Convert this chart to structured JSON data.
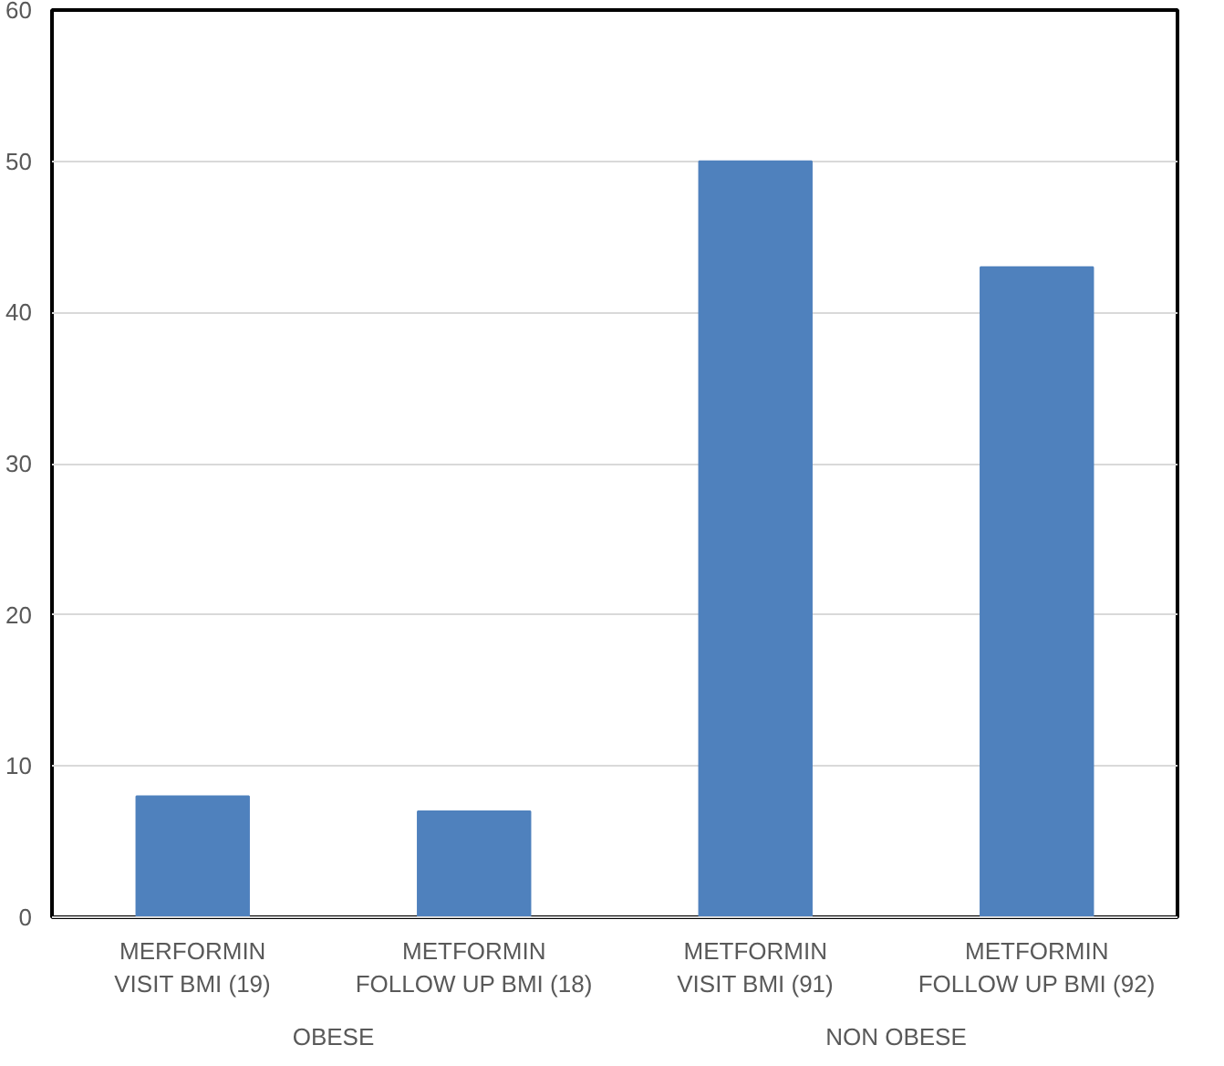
{
  "chart_data": {
    "type": "bar",
    "categories": [
      "MERFORMIN\nVISIT BMI (19)",
      "METFORMIN\nFOLLOW UP BMI (18)",
      "METFORMIN\nVISIT BMI (91)",
      "METFORMIN\nFOLLOW UP BMI (92)"
    ],
    "values": [
      8,
      7,
      50,
      43
    ],
    "color": "#4f81bd",
    "ylim": [
      0,
      60
    ],
    "yticks": [
      0,
      10,
      20,
      30,
      40,
      50,
      60
    ],
    "grid": "y",
    "annotations": [
      "OBESE",
      "NON OBESE"
    ]
  }
}
